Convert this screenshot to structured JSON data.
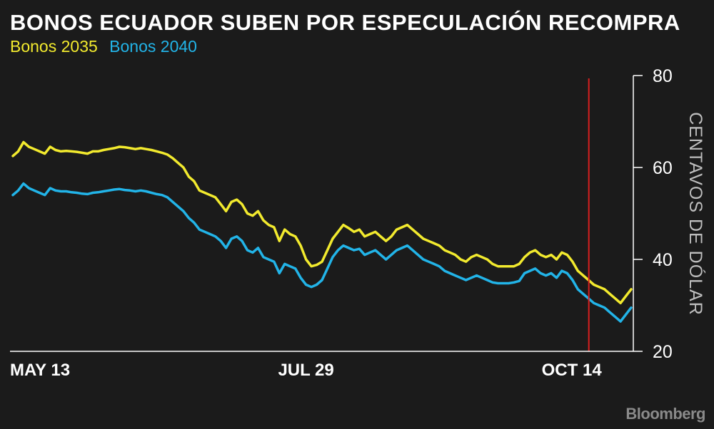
{
  "chart_data": {
    "type": "line",
    "title": "BONOS ECUADOR SUBEN POR ESPECULACIÓN RECOMPRA",
    "ylabel": "CENTAVOS DE DÓLAR",
    "xlabel": "",
    "ylim": [
      20,
      80
    ],
    "yticks": [
      20,
      40,
      60,
      80
    ],
    "xticks": [
      {
        "label": "MAY 13",
        "index": 0
      },
      {
        "label": "JUL 29",
        "index": 55
      },
      {
        "label": "OCT 14",
        "index": 111
      }
    ],
    "marker_index": 111,
    "series": [
      {
        "name": "Bonos 2035",
        "color": "#f2ea2e",
        "values": [
          62.5,
          63.5,
          65.5,
          64.5,
          64.0,
          63.5,
          63.0,
          64.5,
          63.8,
          63.5,
          63.6,
          63.5,
          63.4,
          63.2,
          63.0,
          63.5,
          63.5,
          63.8,
          64.0,
          64.2,
          64.5,
          64.4,
          64.2,
          64.0,
          64.2,
          64.0,
          63.8,
          63.5,
          63.2,
          62.8,
          62.0,
          61.0,
          60.0,
          58.0,
          57.0,
          55.0,
          54.5,
          54.0,
          53.5,
          52.0,
          50.5,
          52.5,
          53.0,
          52.0,
          50.0,
          49.5,
          50.5,
          48.5,
          47.5,
          47.0,
          44.0,
          46.5,
          45.5,
          45.0,
          43.0,
          40.0,
          38.5,
          38.8,
          39.5,
          42.0,
          44.5,
          46.0,
          47.5,
          46.8,
          46.0,
          46.5,
          45.0,
          45.5,
          46.0,
          45.0,
          44.0,
          45.0,
          46.5,
          47.0,
          47.5,
          46.5,
          45.5,
          44.5,
          44.0,
          43.5,
          43.0,
          42.0,
          41.5,
          41.0,
          40.0,
          39.5,
          40.5,
          41.0,
          40.5,
          40.0,
          39.0,
          38.5,
          38.5,
          38.5,
          38.5,
          39.0,
          40.5,
          41.5,
          42.0,
          41.0,
          40.5,
          41.0,
          40.0,
          41.5,
          41.0,
          39.5,
          37.5,
          36.5,
          35.5,
          34.5,
          34.0,
          33.5,
          32.5,
          31.5,
          30.5,
          32.0,
          33.5
        ]
      },
      {
        "name": "Bonos 2040",
        "color": "#22b4e8",
        "values": [
          54.0,
          55.0,
          56.5,
          55.5,
          55.0,
          54.5,
          54.0,
          55.5,
          55.0,
          54.8,
          54.8,
          54.6,
          54.5,
          54.3,
          54.2,
          54.5,
          54.6,
          54.8,
          55.0,
          55.2,
          55.3,
          55.1,
          55.0,
          54.8,
          55.0,
          54.8,
          54.5,
          54.2,
          54.0,
          53.5,
          52.5,
          51.5,
          50.5,
          49.0,
          48.0,
          46.5,
          46.0,
          45.5,
          45.0,
          44.0,
          42.5,
          44.5,
          45.0,
          44.0,
          42.0,
          41.5,
          42.5,
          40.5,
          40.0,
          39.5,
          37.0,
          39.0,
          38.5,
          38.0,
          36.0,
          34.5,
          34.0,
          34.5,
          35.5,
          38.0,
          40.5,
          42.0,
          43.0,
          42.5,
          42.0,
          42.3,
          41.0,
          41.5,
          42.0,
          41.0,
          40.0,
          41.0,
          42.0,
          42.5,
          43.0,
          42.0,
          41.0,
          40.0,
          39.5,
          39.0,
          38.5,
          37.5,
          37.0,
          36.5,
          36.0,
          35.5,
          36.0,
          36.5,
          36.0,
          35.5,
          35.0,
          34.8,
          34.8,
          34.8,
          35.0,
          35.3,
          37.0,
          37.5,
          38.0,
          37.0,
          36.5,
          37.0,
          36.0,
          37.5,
          37.0,
          35.5,
          33.5,
          32.5,
          31.5,
          30.5,
          30.0,
          29.5,
          28.5,
          27.5,
          26.5,
          28.0,
          29.5
        ]
      }
    ]
  },
  "brand": "Bloomberg"
}
